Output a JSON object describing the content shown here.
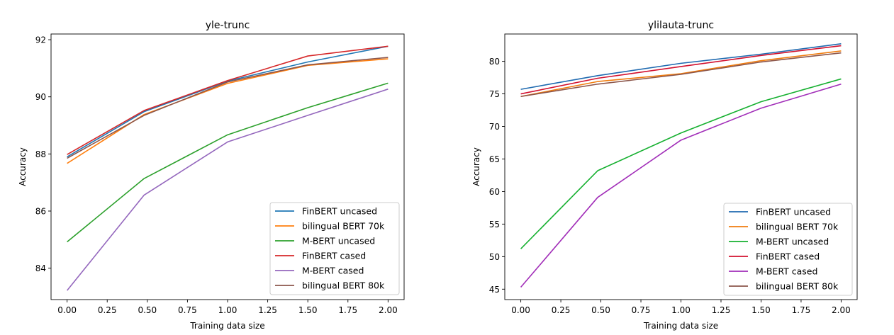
{
  "chart_data": [
    {
      "type": "line",
      "title": "yle-trunc",
      "xlabel": "Training data size",
      "ylabel": "Accuracy",
      "xlim": [
        -0.1,
        2.1
      ],
      "ylim": [
        82.9,
        92.2
      ],
      "xticks": [
        0.0,
        0.25,
        0.5,
        0.75,
        1.0,
        1.25,
        1.5,
        1.75,
        2.0
      ],
      "xtick_labels": [
        "0.00",
        "0.25",
        "0.50",
        "0.75",
        "1.00",
        "1.25",
        "1.50",
        "1.75",
        "2.00"
      ],
      "yticks": [
        84,
        86,
        88,
        90,
        92
      ],
      "ytick_labels": [
        "84",
        "86",
        "88",
        "90",
        "92"
      ],
      "legend_position": "lower-right",
      "series": [
        {
          "name": "FinBERT uncased",
          "color": "#1f77b4",
          "x": [
            0,
            0.48,
            1,
            1.5,
            2
          ],
          "y": [
            87.9,
            89.48,
            90.55,
            91.22,
            91.77
          ]
        },
        {
          "name": "bilingual BERT 70k",
          "color": "#ff7f0e",
          "x": [
            0,
            0.48,
            1,
            1.5,
            2
          ],
          "y": [
            87.67,
            89.38,
            90.47,
            91.1,
            91.33
          ]
        },
        {
          "name": "M-BERT uncased",
          "color": "#2ca02c",
          "x": [
            0,
            0.48,
            1,
            1.5,
            2
          ],
          "y": [
            84.92,
            87.14,
            88.67,
            89.62,
            90.48
          ]
        },
        {
          "name": "FinBERT cased",
          "color": "#d62728",
          "x": [
            0,
            0.48,
            1,
            1.5,
            2
          ],
          "y": [
            87.98,
            89.52,
            90.57,
            91.43,
            91.77
          ]
        },
        {
          "name": "M-BERT cased",
          "color": "#9467bd",
          "x": [
            0,
            0.48,
            1,
            1.5,
            2
          ],
          "y": [
            83.22,
            86.56,
            88.42,
            89.35,
            90.27
          ]
        },
        {
          "name": "bilingual BERT 80k",
          "color": "#8c564b",
          "x": [
            0,
            0.48,
            1,
            1.5,
            2
          ],
          "y": [
            87.85,
            89.35,
            90.52,
            91.12,
            91.38
          ]
        }
      ]
    },
    {
      "type": "line",
      "title": "ylilauta-trunc",
      "xlabel": "Training data size",
      "ylabel": "Accuracy",
      "xlim": [
        -0.1,
        2.1
      ],
      "ylim": [
        43.4,
        84.2
      ],
      "xticks": [
        0.0,
        0.25,
        0.5,
        0.75,
        1.0,
        1.25,
        1.5,
        1.75,
        2.0
      ],
      "xtick_labels": [
        "0.00",
        "0.25",
        "0.50",
        "0.75",
        "1.00",
        "1.25",
        "1.50",
        "1.75",
        "2.00"
      ],
      "yticks": [
        45,
        50,
        55,
        60,
        65,
        70,
        75,
        80
      ],
      "ytick_labels": [
        "45",
        "50",
        "55",
        "60",
        "65",
        "70",
        "75",
        "80"
      ],
      "legend_position": "lower-right",
      "series": [
        {
          "name": "FinBERT uncased",
          "color": "#1f6ab0",
          "x": [
            0,
            0.48,
            1,
            1.5,
            2
          ],
          "y": [
            75.7,
            77.8,
            79.7,
            81.1,
            82.7
          ]
        },
        {
          "name": "bilingual BERT 70k",
          "color": "#f07c0e",
          "x": [
            0,
            0.48,
            1,
            1.5,
            2
          ],
          "y": [
            74.6,
            76.9,
            78.1,
            80.1,
            81.6
          ]
        },
        {
          "name": "M-BERT uncased",
          "color": "#16b030",
          "x": [
            0,
            0.48,
            1,
            1.5,
            2
          ],
          "y": [
            51.2,
            63.2,
            69.0,
            73.8,
            77.3
          ]
        },
        {
          "name": "FinBERT cased",
          "color": "#d2102e",
          "x": [
            0,
            0.48,
            1,
            1.5,
            2
          ],
          "y": [
            75.0,
            77.4,
            79.2,
            80.9,
            82.4
          ]
        },
        {
          "name": "M-BERT cased",
          "color": "#a12db8",
          "x": [
            0,
            0.48,
            1,
            1.5,
            2
          ],
          "y": [
            45.3,
            59.1,
            67.9,
            72.8,
            76.5
          ]
        },
        {
          "name": "bilingual BERT 80k",
          "color": "#8c564b",
          "x": [
            0,
            0.48,
            1,
            1.5,
            2
          ],
          "y": [
            74.6,
            76.5,
            78.0,
            79.9,
            81.3
          ]
        }
      ]
    }
  ]
}
